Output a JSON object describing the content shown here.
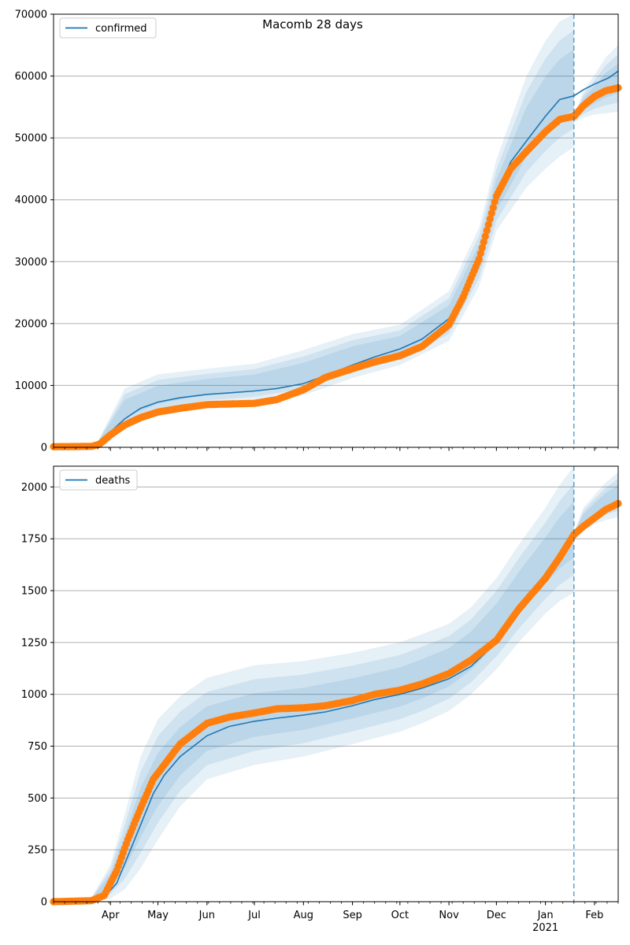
{
  "title": "Macomb 28 days",
  "colors": {
    "model": "#1f77b4",
    "observed": "#ff7f0e",
    "band": "#1f77b4",
    "grid": "#b0b0b0",
    "forecast_line": "#1f77b4"
  },
  "x_axis": {
    "date_range": [
      "2020-02-25",
      "2021-02-16"
    ],
    "month_ticks": [
      {
        "label": "Apr",
        "date": "2020-04-01"
      },
      {
        "label": "May",
        "date": "2020-05-01"
      },
      {
        "label": "Jun",
        "date": "2020-06-01"
      },
      {
        "label": "Jul",
        "date": "2020-07-01"
      },
      {
        "label": "Aug",
        "date": "2020-08-01"
      },
      {
        "label": "Sep",
        "date": "2020-09-01"
      },
      {
        "label": "Oct",
        "date": "2020-10-01"
      },
      {
        "label": "Nov",
        "date": "2020-11-01"
      },
      {
        "label": "Dec",
        "date": "2020-12-01"
      },
      {
        "label": "Jan",
        "date": "2021-01-01"
      },
      {
        "label": "Feb",
        "date": "2021-02-01"
      }
    ],
    "year_label": "2021",
    "forecast_start": "2021-01-19"
  },
  "chart_data": [
    {
      "type": "line",
      "legend": "confirmed",
      "legend_position": "top-left",
      "grid": "y",
      "ylim": [
        0,
        70000
      ],
      "yticks": [
        0,
        10000,
        20000,
        30000,
        40000,
        50000,
        60000,
        70000
      ],
      "model_x": [
        "2020-02-25",
        "2020-03-20",
        "2020-03-25",
        "2020-04-01",
        "2020-04-10",
        "2020-04-20",
        "2020-05-01",
        "2020-05-15",
        "2020-06-01",
        "2020-06-15",
        "2020-07-01",
        "2020-07-15",
        "2020-08-01",
        "2020-08-15",
        "2020-09-01",
        "2020-09-15",
        "2020-10-01",
        "2020-10-15",
        "2020-11-01",
        "2020-11-10",
        "2020-11-20",
        "2020-12-01",
        "2020-12-10",
        "2020-12-20",
        "2021-01-01",
        "2021-01-10",
        "2021-01-19",
        "2021-01-25",
        "2021-02-01",
        "2021-02-10",
        "2021-02-16"
      ],
      "model_y": [
        100,
        120,
        600,
        2500,
        4600,
        6300,
        7300,
        8000,
        8550,
        8800,
        9100,
        9500,
        10300,
        11600,
        13300,
        14600,
        15900,
        17500,
        20800,
        24800,
        31300,
        40800,
        46100,
        49500,
        53500,
        56200,
        56800,
        57800,
        58700,
        59700,
        60800
      ],
      "observed_x": [
        "2020-02-25",
        "2020-03-20",
        "2020-03-25",
        "2020-04-01",
        "2020-04-10",
        "2020-04-20",
        "2020-05-01",
        "2020-05-15",
        "2020-06-01",
        "2020-06-15",
        "2020-07-01",
        "2020-07-15",
        "2020-08-01",
        "2020-08-15",
        "2020-09-01",
        "2020-09-15",
        "2020-10-01",
        "2020-10-15",
        "2020-11-01",
        "2020-11-10",
        "2020-11-20",
        "2020-12-01",
        "2020-12-10",
        "2020-12-20",
        "2021-01-01",
        "2021-01-10",
        "2021-01-19"
      ],
      "observed_y": [
        100,
        150,
        500,
        2000,
        3600,
        4800,
        5700,
        6300,
        6900,
        7000,
        7100,
        7700,
        9300,
        11300,
        12700,
        13800,
        14800,
        16300,
        19800,
        24300,
        30400,
        40600,
        45000,
        47800,
        51000,
        53000,
        53500
      ],
      "extended_x": [
        "2021-01-19",
        "2021-01-25",
        "2021-02-01",
        "2021-02-08",
        "2021-02-16"
      ],
      "extended_y": [
        53500,
        55200,
        56700,
        57600,
        58100
      ],
      "band_x": [
        "2020-03-25",
        "2020-04-10",
        "2020-05-01",
        "2020-06-01",
        "2020-07-01",
        "2020-08-01",
        "2020-09-01",
        "2020-10-01",
        "2020-11-01",
        "2020-11-20",
        "2020-12-01",
        "2020-12-20",
        "2021-01-01",
        "2021-01-10",
        "2021-01-19"
      ],
      "band_lo": [
        300,
        3000,
        5200,
        6800,
        7300,
        8400,
        11200,
        13300,
        17200,
        26000,
        35000,
        42000,
        45000,
        47000,
        48500
      ],
      "band_hi": [
        1500,
        9500,
        11800,
        12700,
        13500,
        15700,
        18300,
        19800,
        25200,
        35500,
        46500,
        60000,
        65700,
        68800,
        70500
      ],
      "forecast_band_x": [
        "2021-01-19",
        "2021-01-25",
        "2021-02-01",
        "2021-02-08",
        "2021-02-16"
      ],
      "forecast_band_lo": [
        52500,
        53300,
        53800,
        54000,
        54200
      ],
      "forecast_band_hi": [
        53500,
        57600,
        60200,
        63000,
        65000
      ]
    },
    {
      "type": "line",
      "legend": "deaths",
      "legend_position": "top-left",
      "grid": "y",
      "ylim": [
        0,
        2100
      ],
      "yticks": [
        0,
        250,
        500,
        750,
        1000,
        1250,
        1500,
        1750,
        2000
      ],
      "model_x": [
        "2020-02-25",
        "2020-03-20",
        "2020-03-28",
        "2020-04-05",
        "2020-04-12",
        "2020-04-20",
        "2020-04-28",
        "2020-05-05",
        "2020-05-15",
        "2020-06-01",
        "2020-06-15",
        "2020-07-01",
        "2020-07-15",
        "2020-08-01",
        "2020-08-15",
        "2020-09-01",
        "2020-09-15",
        "2020-10-01",
        "2020-10-15",
        "2020-11-01",
        "2020-11-15",
        "2020-12-01",
        "2020-12-15",
        "2021-01-01",
        "2021-01-10",
        "2021-01-19",
        "2021-01-25",
        "2021-02-01",
        "2021-02-10",
        "2021-02-16"
      ],
      "model_y": [
        0,
        3,
        20,
        90,
        220,
        370,
        520,
        610,
        700,
        800,
        845,
        870,
        885,
        900,
        915,
        945,
        975,
        1000,
        1030,
        1075,
        1135,
        1250,
        1400,
        1580,
        1660,
        1750,
        1800,
        1850,
        1885,
        1905
      ],
      "observed_x": [
        "2020-02-25",
        "2020-03-20",
        "2020-03-28",
        "2020-04-05",
        "2020-04-12",
        "2020-04-20",
        "2020-04-28",
        "2020-05-05",
        "2020-05-15",
        "2020-06-01",
        "2020-06-15",
        "2020-07-01",
        "2020-07-15",
        "2020-08-01",
        "2020-08-15",
        "2020-09-01",
        "2020-09-15",
        "2020-10-01",
        "2020-10-15",
        "2020-11-01",
        "2020-11-15",
        "2020-12-01",
        "2020-12-15",
        "2021-01-01",
        "2021-01-10",
        "2021-01-19"
      ],
      "observed_y": [
        0,
        5,
        30,
        150,
        300,
        450,
        590,
        660,
        760,
        860,
        890,
        910,
        930,
        935,
        945,
        970,
        1000,
        1020,
        1050,
        1100,
        1165,
        1260,
        1410,
        1560,
        1660,
        1770
      ],
      "extended_x": [
        "2021-01-19",
        "2021-01-25",
        "2021-02-01",
        "2021-02-08",
        "2021-02-16"
      ],
      "extended_y": [
        1770,
        1810,
        1850,
        1890,
        1920
      ],
      "band_x": [
        "2020-03-20",
        "2020-04-01",
        "2020-04-10",
        "2020-04-20",
        "2020-05-01",
        "2020-05-15",
        "2020-06-01",
        "2020-07-01",
        "2020-08-01",
        "2020-09-01",
        "2020-10-01",
        "2020-10-15",
        "2020-11-01",
        "2020-11-15",
        "2020-12-01",
        "2020-12-15",
        "2021-01-01",
        "2021-01-10",
        "2021-01-19"
      ],
      "band_lo": [
        0,
        15,
        60,
        160,
        300,
        460,
        590,
        660,
        700,
        760,
        820,
        860,
        920,
        1000,
        1120,
        1250,
        1390,
        1450,
        1490
      ],
      "band_hi": [
        20,
        180,
        420,
        700,
        880,
        990,
        1080,
        1140,
        1160,
        1200,
        1250,
        1290,
        1340,
        1420,
        1560,
        1720,
        1900,
        2010,
        2100
      ],
      "forecast_band_x": [
        "2021-01-19",
        "2021-01-25",
        "2021-02-01",
        "2021-02-08",
        "2021-02-16"
      ],
      "forecast_band_lo": [
        1760,
        1790,
        1820,
        1840,
        1855
      ],
      "forecast_band_hi": [
        1780,
        1900,
        1960,
        2020,
        2070
      ]
    }
  ]
}
